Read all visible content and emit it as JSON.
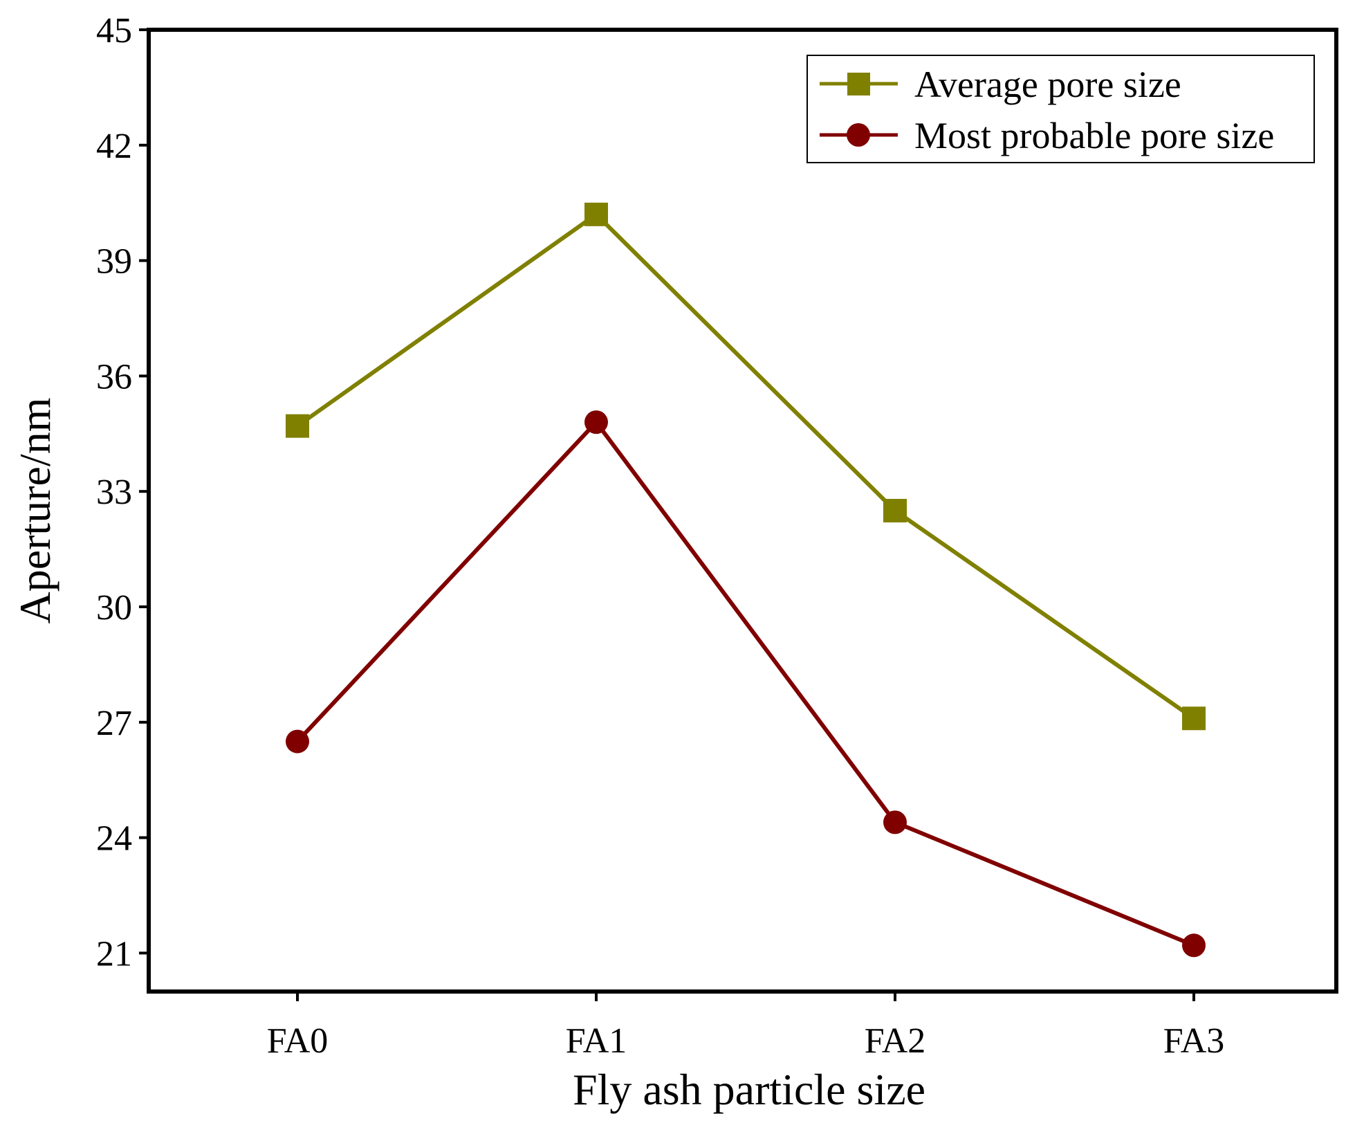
{
  "chart_data": {
    "type": "line",
    "title": "",
    "xlabel": "Fly ash particle size",
    "ylabel": "Aperture/nm",
    "categories": [
      "FA0",
      "FA1",
      "FA2",
      "FA3"
    ],
    "ylim": [
      20,
      45
    ],
    "yticks": [
      21,
      24,
      27,
      30,
      33,
      36,
      39,
      42,
      45
    ],
    "grid": false,
    "legend_position": "top-right",
    "series": [
      {
        "name": "Average pore size",
        "values": [
          34.7,
          40.2,
          32.5,
          27.1
        ],
        "color": "#808000",
        "marker": "square"
      },
      {
        "name": "Most probable pore size",
        "values": [
          26.5,
          34.8,
          24.4,
          21.2
        ],
        "color": "#800000",
        "marker": "circle"
      }
    ]
  }
}
